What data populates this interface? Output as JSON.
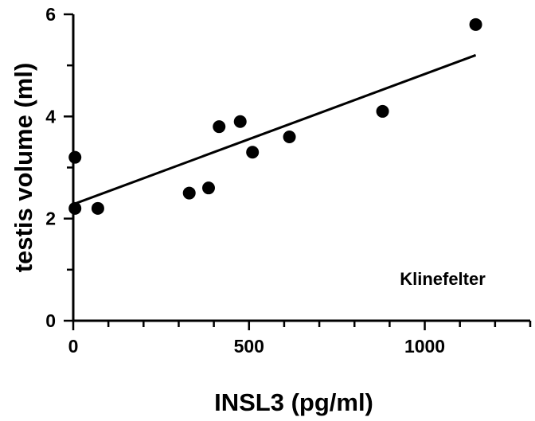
{
  "chart_data": {
    "type": "scatter",
    "title": "",
    "xlabel": "INSL3 (pg/ml)",
    "ylabel": "testis volume (ml)",
    "annotation": "Klinefelter",
    "xlim": [
      0,
      1300
    ],
    "ylim": [
      0,
      6
    ],
    "x_ticks": [
      0,
      500,
      1000
    ],
    "y_ticks": [
      0,
      2,
      4,
      6
    ],
    "x_minor_step": 100,
    "y_minor_step": 1,
    "grid": false,
    "legend": "none",
    "marker_color": "#000000",
    "points": [
      {
        "x": 5,
        "y": 3.2
      },
      {
        "x": 5,
        "y": 2.2
      },
      {
        "x": 70,
        "y": 2.2
      },
      {
        "x": 330,
        "y": 2.5
      },
      {
        "x": 385,
        "y": 2.6
      },
      {
        "x": 415,
        "y": 3.8
      },
      {
        "x": 475,
        "y": 3.9
      },
      {
        "x": 510,
        "y": 3.3
      },
      {
        "x": 615,
        "y": 3.6
      },
      {
        "x": 880,
        "y": 4.1
      },
      {
        "x": 1145,
        "y": 5.8
      }
    ],
    "fit_line": {
      "x": [
        0,
        1145
      ],
      "y": [
        2.28,
        5.2
      ]
    }
  }
}
